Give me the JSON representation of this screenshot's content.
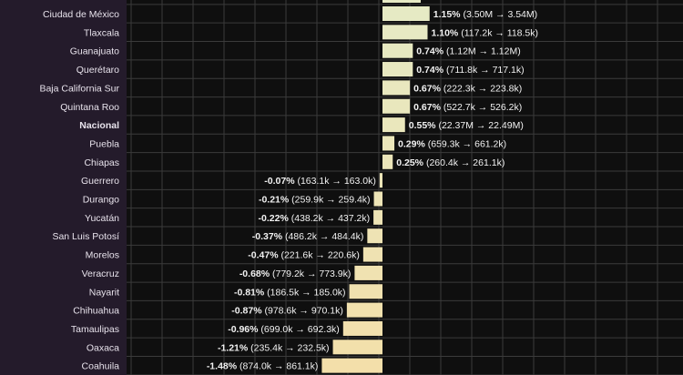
{
  "chart_data": {
    "type": "bar",
    "orientation": "horizontal",
    "grid": true,
    "colors": {
      "background": "#241b2b",
      "plot_background": "#0f0f0f",
      "grid": "#3b3b3b",
      "bar_light": "#e6eac4",
      "bar_dark": "#f3dfaa",
      "text": "#f2f2f2"
    },
    "xlim": [
      -3,
      3
    ],
    "rows": [
      {
        "category": "Ciudad de México",
        "value": 1.15,
        "label_pct": "1.15%",
        "label_detail": " (3.50M → 3.54M)",
        "bold": false
      },
      {
        "category": "Tlaxcala",
        "value": 1.1,
        "label_pct": "1.10%",
        "label_detail": " (117.2k → 118.5k)",
        "bold": false
      },
      {
        "category": "Guanajuato",
        "value": 0.74,
        "label_pct": "0.74%",
        "label_detail": " (1.12M → 1.12M)",
        "bold": false
      },
      {
        "category": "Querétaro",
        "value": 0.74,
        "label_pct": "0.74%",
        "label_detail": " (711.8k → 717.1k)",
        "bold": false
      },
      {
        "category": "Baja California Sur",
        "value": 0.67,
        "label_pct": "0.67%",
        "label_detail": " (222.3k → 223.8k)",
        "bold": false
      },
      {
        "category": "Quintana Roo",
        "value": 0.67,
        "label_pct": "0.67%",
        "label_detail": " (522.7k → 526.2k)",
        "bold": false
      },
      {
        "category": "Nacional",
        "value": 0.55,
        "label_pct": "0.55%",
        "label_detail": " (22.37M → 22.49M)",
        "bold": true
      },
      {
        "category": "Puebla",
        "value": 0.29,
        "label_pct": "0.29%",
        "label_detail": " (659.3k → 661.2k)",
        "bold": false
      },
      {
        "category": "Chiapas",
        "value": 0.25,
        "label_pct": "0.25%",
        "label_detail": " (260.4k → 261.1k)",
        "bold": false
      },
      {
        "category": "Guerrero",
        "value": -0.07,
        "label_pct": "-0.07%",
        "label_detail": " (163.1k → 163.0k)",
        "bold": false
      },
      {
        "category": "Durango",
        "value": -0.21,
        "label_pct": "-0.21%",
        "label_detail": " (259.9k → 259.4k)",
        "bold": false
      },
      {
        "category": "Yucatán",
        "value": -0.22,
        "label_pct": "-0.22%",
        "label_detail": " (438.2k → 437.2k)",
        "bold": false
      },
      {
        "category": "San Luis Potosí",
        "value": -0.37,
        "label_pct": "-0.37%",
        "label_detail": " (486.2k → 484.4k)",
        "bold": false
      },
      {
        "category": "Morelos",
        "value": -0.47,
        "label_pct": "-0.47%",
        "label_detail": " (221.6k → 220.6k)",
        "bold": false
      },
      {
        "category": "Veracruz",
        "value": -0.68,
        "label_pct": "-0.68%",
        "label_detail": " (779.2k → 773.9k)",
        "bold": false
      },
      {
        "category": "Nayarit",
        "value": -0.81,
        "label_pct": "-0.81%",
        "label_detail": " (186.5k → 185.0k)",
        "bold": false
      },
      {
        "category": "Chihuahua",
        "value": -0.87,
        "label_pct": "-0.87%",
        "label_detail": " (978.6k → 970.1k)",
        "bold": false
      },
      {
        "category": "Tamaulipas",
        "value": -0.96,
        "label_pct": "-0.96%",
        "label_detail": " (699.0k → 692.3k)",
        "bold": false
      },
      {
        "category": "Oaxaca",
        "value": -1.21,
        "label_pct": "-1.21%",
        "label_detail": " (235.4k → 232.5k)",
        "bold": false
      },
      {
        "category": "Coahuila",
        "value": -1.48,
        "label_pct": "-1.48%",
        "label_detail": " (874.0k → 861.1k)",
        "bold": false
      }
    ]
  }
}
